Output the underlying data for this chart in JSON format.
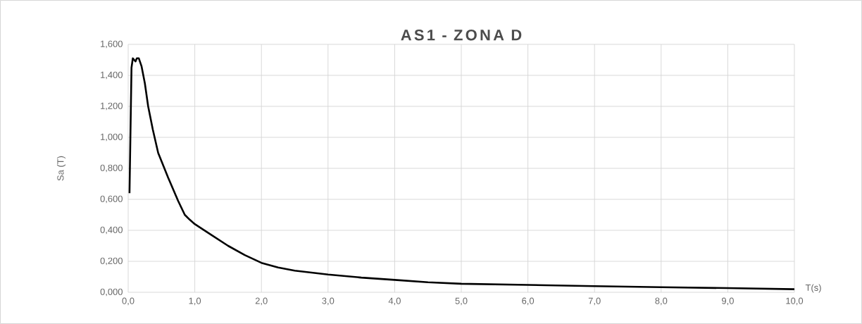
{
  "chart_data": {
    "type": "line",
    "title": "AS1 - ZONA D",
    "xlabel": "T(s)",
    "ylabel": "Sa (T)",
    "x": [
      0.02,
      0.05,
      0.07,
      0.09,
      0.11,
      0.13,
      0.16,
      0.2,
      0.25,
      0.3,
      0.37,
      0.45,
      0.6,
      0.75,
      0.85,
      0.92,
      1.0,
      1.25,
      1.5,
      1.75,
      2.0,
      2.25,
      2.5,
      3.0,
      3.5,
      4.0,
      4.5,
      5.0,
      6.0,
      7.0,
      8.0,
      9.0,
      10.0
    ],
    "series": [
      {
        "color": "#000000",
        "values": [
          0.64,
          1.45,
          1.51,
          1.5,
          1.49,
          1.51,
          1.51,
          1.46,
          1.35,
          1.2,
          1.05,
          0.9,
          0.74,
          0.59,
          0.5,
          0.47,
          0.44,
          0.37,
          0.3,
          0.24,
          0.19,
          0.16,
          0.14,
          0.115,
          0.095,
          0.08,
          0.065,
          0.055,
          0.048,
          0.04,
          0.033,
          0.027,
          0.02
        ]
      }
    ],
    "xlim": [
      0,
      10
    ],
    "ylim": [
      0,
      1.6
    ],
    "xticks": [
      {
        "value": 0,
        "label": "0,0"
      },
      {
        "value": 1,
        "label": "1,0"
      },
      {
        "value": 2,
        "label": "2,0"
      },
      {
        "value": 3,
        "label": "3,0"
      },
      {
        "value": 4,
        "label": "4,0"
      },
      {
        "value": 5,
        "label": "5,0"
      },
      {
        "value": 6,
        "label": "6,0"
      },
      {
        "value": 7,
        "label": "7,0"
      },
      {
        "value": 8,
        "label": "8,0"
      },
      {
        "value": 9,
        "label": "9,0"
      },
      {
        "value": 10,
        "label": "10,0"
      }
    ],
    "yticks": [
      {
        "value": 0,
        "label": "0,000"
      },
      {
        "value": 0.2,
        "label": "0,200"
      },
      {
        "value": 0.4,
        "label": "0,400"
      },
      {
        "value": 0.6,
        "label": "0,600"
      },
      {
        "value": 0.8,
        "label": "0,800"
      },
      {
        "value": 1.0,
        "label": "1,000"
      },
      {
        "value": 1.2,
        "label": "1,200"
      },
      {
        "value": 1.4,
        "label": "1,400"
      },
      {
        "value": 1.6,
        "label": "1,600"
      }
    ],
    "grid": true,
    "legend": false,
    "marker": "none",
    "line_style": "solid"
  }
}
